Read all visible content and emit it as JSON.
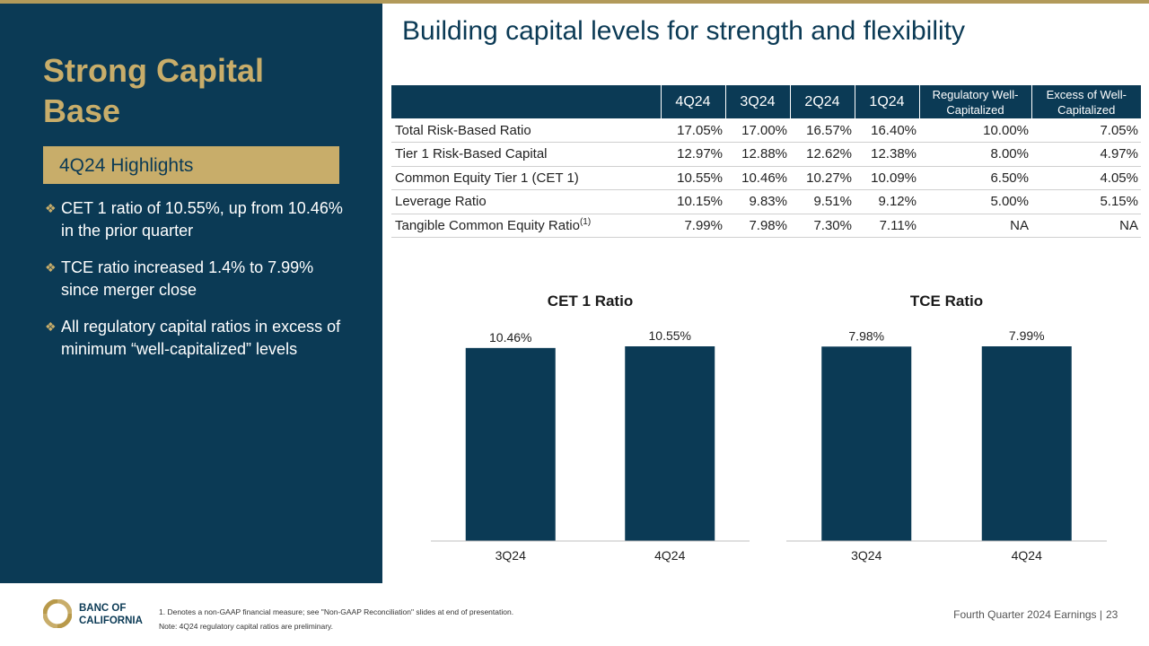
{
  "sidebar": {
    "title": "Strong Capital Base",
    "highlight": "4Q24 Highlights",
    "bullets": [
      "CET 1 ratio of 10.55%, up from 10.46% in the prior quarter",
      "TCE ratio increased 1.4% to 7.99% since merger close",
      "All regulatory capital ratios in excess of minimum “well-capitalized” levels"
    ]
  },
  "main_title": "Building capital levels for strength and flexibility",
  "table": {
    "headers": [
      "",
      "4Q24",
      "3Q24",
      "2Q24",
      "1Q24",
      "Regulatory Well-Capitalized",
      "Excess of Well-Capitalized"
    ],
    "rows": [
      {
        "label": "Total Risk-Based Ratio",
        "sup": "",
        "values": [
          "17.05%",
          "17.00%",
          "16.57%",
          "16.40%",
          "10.00%",
          "7.05%"
        ]
      },
      {
        "label": "Tier 1 Risk-Based Capital",
        "sup": "",
        "values": [
          "12.97%",
          "12.88%",
          "12.62%",
          "12.38%",
          "8.00%",
          "4.97%"
        ]
      },
      {
        "label": "Common Equity Tier 1 (CET 1)",
        "sup": "",
        "values": [
          "10.55%",
          "10.46%",
          "10.27%",
          "10.09%",
          "6.50%",
          "4.05%"
        ]
      },
      {
        "label": "Leverage Ratio",
        "sup": "",
        "values": [
          "10.15%",
          "9.83%",
          "9.51%",
          "9.12%",
          "5.00%",
          "5.15%"
        ]
      },
      {
        "label": "Tangible Common Equity Ratio",
        "sup": "(1)",
        "values": [
          "7.99%",
          "7.98%",
          "7.30%",
          "7.11%",
          "NA",
          "NA"
        ]
      }
    ]
  },
  "chart_data": [
    {
      "type": "bar",
      "title": "CET 1 Ratio",
      "categories": [
        "3Q24",
        "4Q24"
      ],
      "values": [
        10.46,
        10.55
      ],
      "labels": [
        "10.46%",
        "10.55%"
      ],
      "color": "#0b3a55"
    },
    {
      "type": "bar",
      "title": "TCE Ratio",
      "categories": [
        "3Q24",
        "4Q24"
      ],
      "values": [
        7.98,
        7.99
      ],
      "labels": [
        "7.98%",
        "7.99%"
      ],
      "color": "#0b3a55"
    }
  ],
  "footer": {
    "brand_line1": "BANC OF",
    "brand_line2": "CALIFORNIA",
    "footnote1": "1. Denotes a non-GAAP financial measure; see \"Non-GAAP Reconciliation\" slides at end of presentation.",
    "footnote2": "Note: 4Q24 regulatory capital ratios are preliminary.",
    "label": "Fourth Quarter 2024 Earnings |",
    "page": "23"
  },
  "colors": {
    "navy": "#0b3a55",
    "gold": "#c8ad6a"
  }
}
